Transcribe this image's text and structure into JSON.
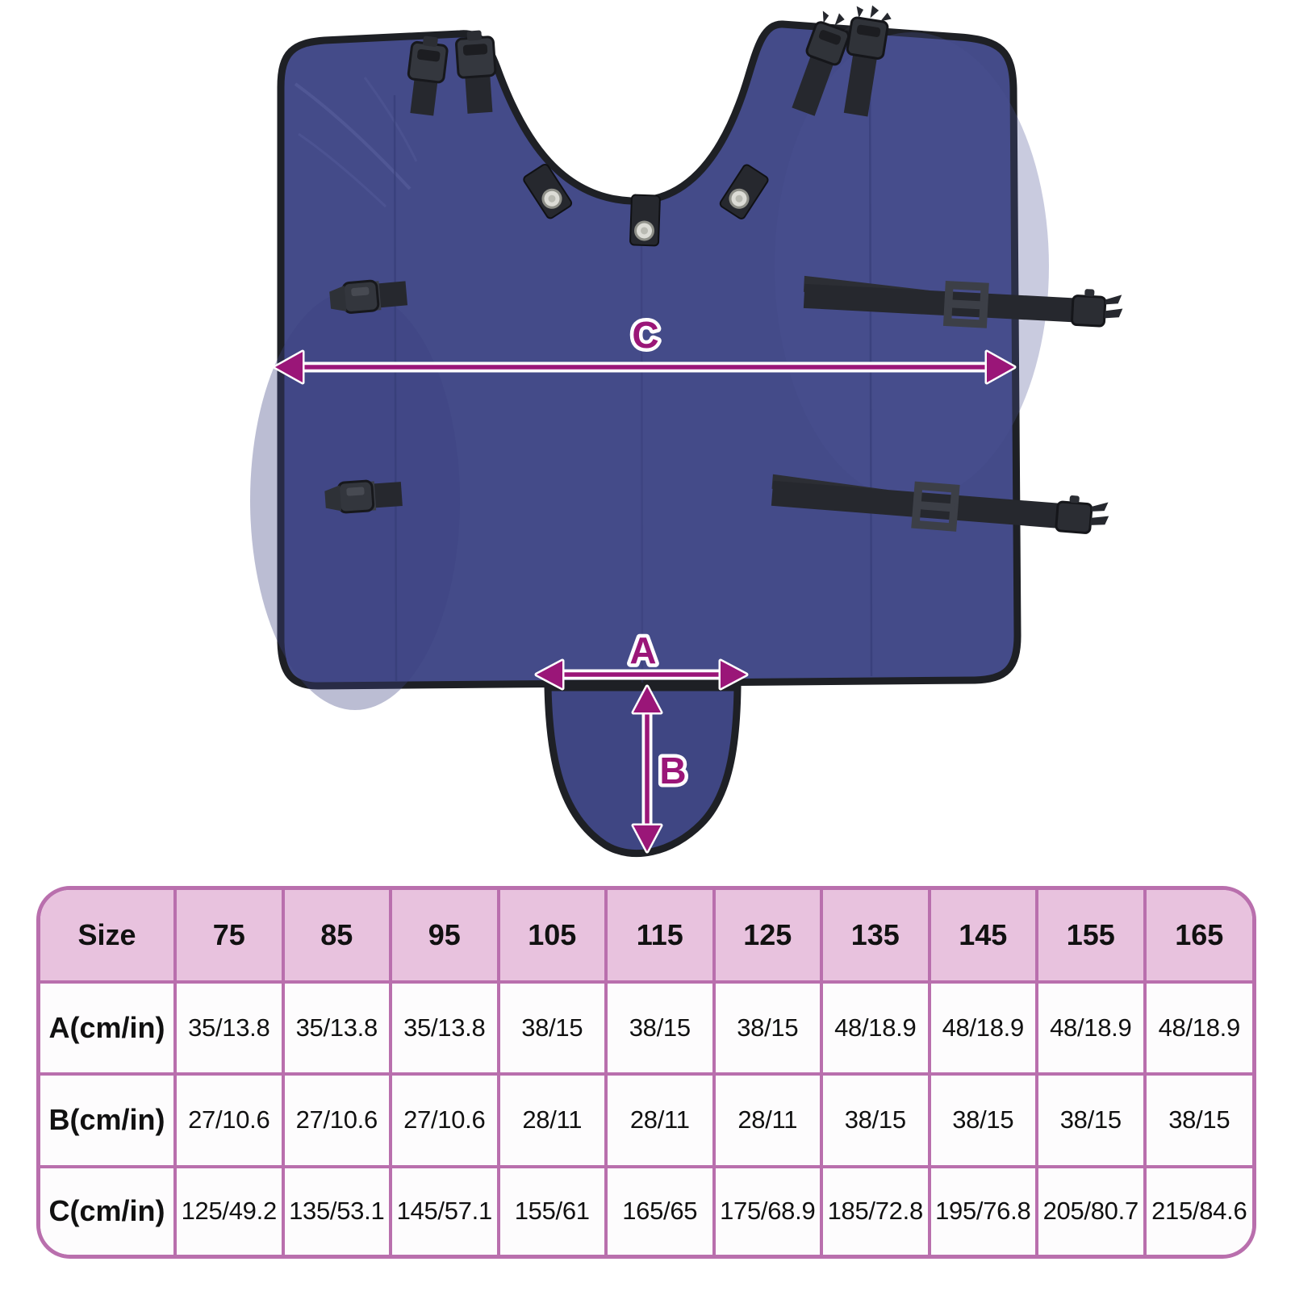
{
  "diagram": {
    "labels": {
      "a": "A",
      "b": "B",
      "c": "C"
    }
  },
  "size_table": {
    "corner_header": "Size",
    "header": [
      "Size",
      "75",
      "85",
      "95",
      "105",
      "115",
      "125",
      "135",
      "145",
      "155",
      "165"
    ],
    "rows": [
      {
        "label": "A(cm/in)",
        "values": [
          "35/13.8",
          "35/13.8",
          "35/13.8",
          "38/15",
          "38/15",
          "38/15",
          "48/18.9",
          "48/18.9",
          "48/18.9",
          "48/18.9"
        ]
      },
      {
        "label": "B(cm/in)",
        "values": [
          "27/10.6",
          "27/10.6",
          "27/10.6",
          "28/11",
          "28/11",
          "28/11",
          "38/15",
          "38/15",
          "38/15",
          "38/15"
        ]
      },
      {
        "label": "C(cm/in)",
        "values": [
          "125/49.2",
          "135/53.1",
          "145/57.1",
          "155/61",
          "165/65",
          "175/68.9",
          "185/72.8",
          "195/76.8",
          "205/80.7",
          "215/84.6"
        ]
      }
    ]
  },
  "colors": {
    "page_bg": "#ffffff",
    "fabric": "#444b89",
    "fabric_dark": "#3f4683",
    "trim": "#1e2025",
    "strap": "#26282e",
    "strap_light": "#3b3e46",
    "arrow": "#9a1678",
    "table_border": "#b96fad",
    "table_header_bg": "#e8c2de",
    "table_cell_bg": "#fdfcfd",
    "text": "#111111"
  }
}
